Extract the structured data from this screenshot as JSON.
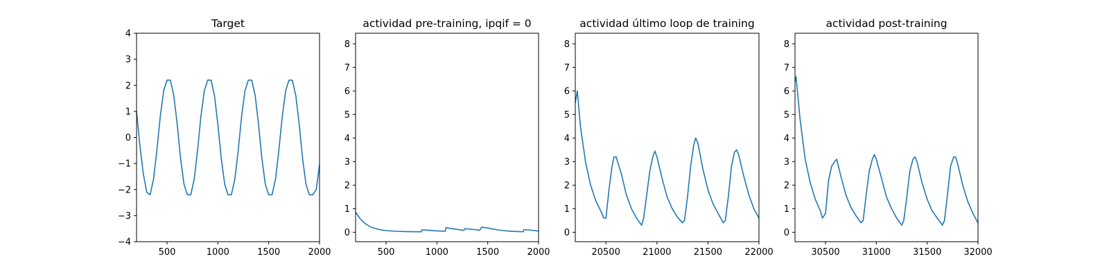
{
  "chart_data": [
    {
      "type": "line",
      "title": "Target",
      "xlim": [
        200,
        2000
      ],
      "ylim": [
        -4,
        4
      ],
      "xticks": [
        500,
        1000,
        1500,
        2000
      ],
      "yticks": [
        -4,
        -3,
        -2,
        -1,
        0,
        1,
        2,
        3,
        4
      ],
      "series": [
        {
          "color": "#1f77b4",
          "x": [
            200,
            233,
            267,
            300,
            333,
            367,
            400,
            433,
            467,
            500,
            533,
            567,
            600,
            633,
            667,
            700,
            733,
            767,
            800,
            833,
            867,
            900,
            933,
            967,
            1000,
            1033,
            1067,
            1100,
            1133,
            1167,
            1200,
            1233,
            1267,
            1300,
            1333,
            1367,
            1400,
            1433,
            1467,
            1500,
            1533,
            1567,
            1600,
            1633,
            1667,
            1700,
            1733,
            1767,
            1800,
            1833,
            1867,
            1900,
            1933,
            1967,
            2000
          ],
          "y": [
            1.0,
            -0.3,
            -1.4,
            -2.1,
            -2.2,
            -1.6,
            -0.5,
            0.8,
            1.8,
            2.2,
            2.2,
            1.6,
            0.5,
            -0.8,
            -1.8,
            -2.2,
            -2.2,
            -1.6,
            -0.5,
            0.8,
            1.8,
            2.2,
            2.2,
            1.6,
            0.5,
            -0.8,
            -1.8,
            -2.2,
            -2.2,
            -1.6,
            -0.5,
            0.8,
            1.8,
            2.2,
            2.2,
            1.6,
            0.5,
            -0.8,
            -1.8,
            -2.2,
            -2.2,
            -1.6,
            -0.5,
            0.8,
            1.8,
            2.2,
            2.2,
            1.6,
            0.5,
            -0.8,
            -1.8,
            -2.2,
            -2.2,
            -2.0,
            -1.05
          ]
        }
      ]
    },
    {
      "type": "line",
      "title": "actividad pre-training, ipqif = 0",
      "xlim": [
        200,
        2000
      ],
      "ylim": [
        -0.4,
        8.45
      ],
      "xticks": [
        500,
        1000,
        1500,
        2000
      ],
      "yticks": [
        0,
        1,
        2,
        3,
        4,
        5,
        6,
        7,
        8
      ],
      "series": [
        {
          "color": "#1f77b4",
          "x": [
            200,
            250,
            300,
            350,
            400,
            450,
            500,
            600,
            700,
            800,
            850,
            851,
            900,
            1000,
            1080,
            1090,
            1110,
            1200,
            1265,
            1275,
            1300,
            1400,
            1420,
            1440,
            1500,
            1600,
            1700,
            1800,
            1850,
            1855,
            1900,
            2000
          ],
          "y": [
            0.85,
            0.55,
            0.35,
            0.22,
            0.15,
            0.1,
            0.07,
            0.04,
            0.03,
            0.02,
            0.02,
            0.1,
            0.09,
            0.06,
            0.04,
            0.2,
            0.18,
            0.12,
            0.08,
            0.15,
            0.14,
            0.1,
            0.08,
            0.22,
            0.18,
            0.1,
            0.05,
            0.03,
            0.02,
            0.11,
            0.1,
            0.05
          ]
        }
      ]
    },
    {
      "type": "line",
      "title": "actividad último loop de training",
      "xlim": [
        20200,
        22000
      ],
      "ylim": [
        -0.4,
        8.45
      ],
      "xticks": [
        20500,
        21000,
        21500,
        22000
      ],
      "yticks": [
        0,
        1,
        2,
        3,
        4,
        5,
        6,
        7,
        8
      ],
      "series": [
        {
          "color": "#1f77b4",
          "x": [
            20200,
            20220,
            20250,
            20300,
            20350,
            20400,
            20450,
            20480,
            20500,
            20530,
            20560,
            20580,
            20600,
            20650,
            20700,
            20750,
            20800,
            20850,
            20870,
            20900,
            20930,
            20960,
            20980,
            21000,
            21050,
            21100,
            21150,
            21200,
            21250,
            21270,
            21300,
            21330,
            21360,
            21380,
            21400,
            21450,
            21500,
            21550,
            21600,
            21650,
            21670,
            21700,
            21730,
            21760,
            21780,
            21800,
            21850,
            21900,
            21950,
            22000
          ],
          "y": [
            5.5,
            6.0,
            4.5,
            3.0,
            2.0,
            1.35,
            0.9,
            0.6,
            0.6,
            1.8,
            2.8,
            3.2,
            3.2,
            2.5,
            1.6,
            1.0,
            0.6,
            0.3,
            0.6,
            1.6,
            2.6,
            3.2,
            3.45,
            3.2,
            2.3,
            1.5,
            1.0,
            0.65,
            0.4,
            0.5,
            1.5,
            2.8,
            3.7,
            4.0,
            3.8,
            2.7,
            1.8,
            1.2,
            0.8,
            0.4,
            0.5,
            1.5,
            2.8,
            3.4,
            3.5,
            3.3,
            2.4,
            1.6,
            1.0,
            0.6
          ]
        }
      ]
    },
    {
      "type": "line",
      "title": "actividad post-training",
      "xlim": [
        30200,
        32000
      ],
      "ylim": [
        -0.4,
        8.45
      ],
      "xticks": [
        30500,
        31000,
        31500,
        32000
      ],
      "yticks": [
        0,
        1,
        2,
        3,
        4,
        5,
        6,
        7,
        8
      ],
      "series": [
        {
          "color": "#1f77b4",
          "x": [
            30200,
            30210,
            30250,
            30300,
            30350,
            30400,
            30450,
            30470,
            30500,
            30530,
            30560,
            30590,
            30610,
            30650,
            30700,
            30750,
            30800,
            30850,
            30870,
            30900,
            30930,
            30960,
            30980,
            31000,
            31050,
            31100,
            31150,
            31200,
            31250,
            31270,
            31300,
            31330,
            31360,
            31380,
            31400,
            31450,
            31500,
            31550,
            31600,
            31650,
            31670,
            31700,
            31730,
            31760,
            31780,
            31800,
            31850,
            31900,
            31950,
            32000
          ],
          "y": [
            6.4,
            6.6,
            4.8,
            3.1,
            2.1,
            1.4,
            0.9,
            0.6,
            0.8,
            2.2,
            2.8,
            3.0,
            3.1,
            2.4,
            1.6,
            1.05,
            0.7,
            0.4,
            0.5,
            1.6,
            2.6,
            3.1,
            3.3,
            3.1,
            2.3,
            1.5,
            1.0,
            0.6,
            0.3,
            0.5,
            1.5,
            2.6,
            3.1,
            3.2,
            3.0,
            2.1,
            1.4,
            0.9,
            0.6,
            0.3,
            0.5,
            1.6,
            2.8,
            3.2,
            3.2,
            2.9,
            2.0,
            1.3,
            0.8,
            0.4
          ]
        }
      ]
    }
  ]
}
